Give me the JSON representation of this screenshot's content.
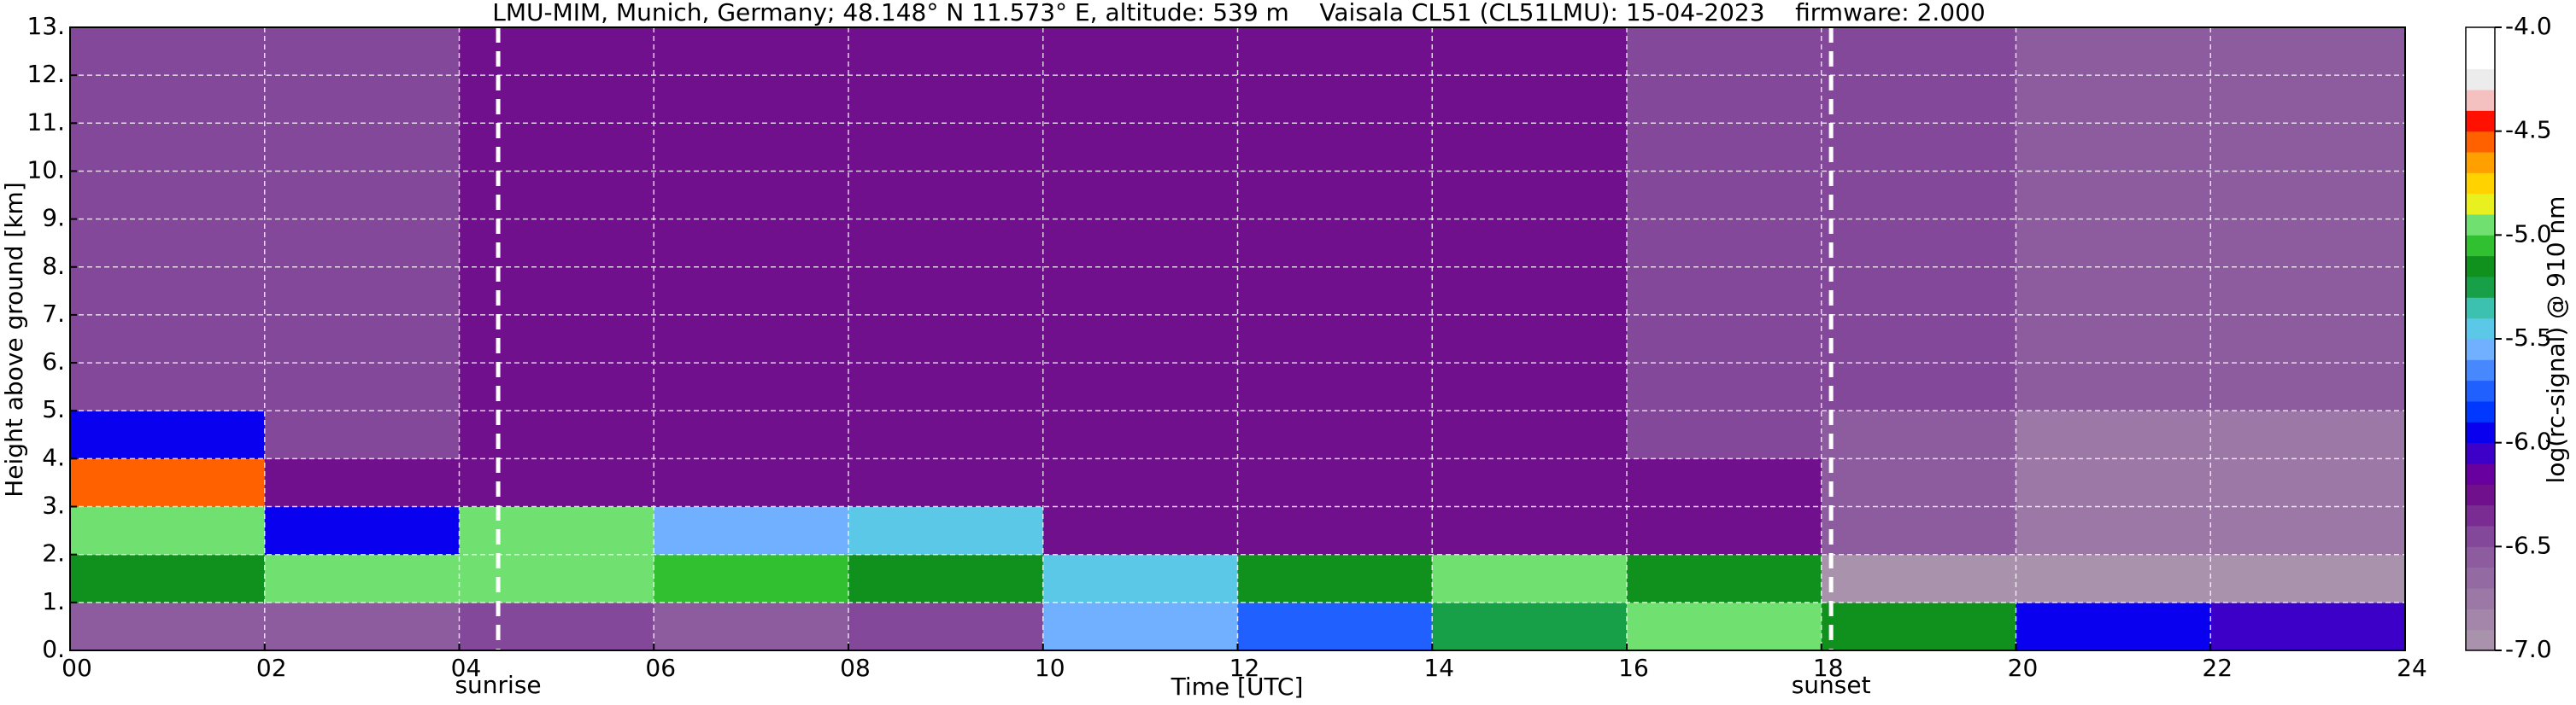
{
  "chart_data": {
    "type": "heatmap",
    "title": "LMU-MIM, Munich, Germany; 48.148° N 11.573° E, altitude: 539 m    Vaisala CL51 (CL51LMU): 15-04-2023    firmware: 2.000",
    "xlabel": "Time [UTC]",
    "ylabel": "Height above ground [km]",
    "colorbar_label": "log(rc-signal) @ 910 nm",
    "xlim": [
      0,
      24
    ],
    "ylim": [
      0,
      13
    ],
    "xticks": [
      {
        "value": 0,
        "label": "00"
      },
      {
        "value": 2,
        "label": "02"
      },
      {
        "value": 4,
        "label": "04"
      },
      {
        "value": 6,
        "label": "06"
      },
      {
        "value": 8,
        "label": "08"
      },
      10,
      12,
      14,
      16,
      18,
      20,
      22,
      24
    ],
    "yticks": [
      {
        "value": 0,
        "label": "0."
      },
      {
        "value": 1,
        "label": "1."
      },
      {
        "value": 2,
        "label": "2."
      },
      {
        "value": 3,
        "label": "3."
      },
      {
        "value": 4,
        "label": "4."
      },
      {
        "value": 5,
        "label": "5."
      },
      {
        "value": 6,
        "label": "6."
      },
      {
        "value": 7,
        "label": "7."
      },
      {
        "value": 8,
        "label": "8."
      },
      {
        "value": 9,
        "label": "9."
      },
      {
        "value": 10,
        "label": "10."
      },
      {
        "value": 11,
        "label": "11."
      },
      {
        "value": 12,
        "label": "12."
      },
      {
        "value": 13,
        "label": "13."
      }
    ],
    "grid": true,
    "x_edges": [
      0,
      2,
      4,
      6,
      8,
      10,
      12,
      14,
      16,
      18,
      20,
      22,
      24
    ],
    "y_edges": [
      0,
      1,
      2,
      3,
      4,
      5,
      6,
      7,
      8,
      9,
      10,
      11,
      12,
      13
    ],
    "values": [
      [
        -6.6,
        -6.6,
        -6.5,
        -6.6,
        -6.4,
        -5.6,
        -5.8,
        -5.3,
        -5.0,
        -5.2,
        -6.0,
        -6.1
      ],
      [
        -5.2,
        -5.0,
        -5.0,
        -5.1,
        -5.2,
        -5.5,
        -5.2,
        -5.0,
        -5.2,
        -7.0,
        -7.0,
        -7.0
      ],
      [
        -4.9,
        -6.0,
        -5.0,
        -5.6,
        -5.5,
        -6.3,
        -6.3,
        -6.3,
        -6.3,
        -6.6,
        -6.7,
        -6.7
      ],
      [
        -4.6,
        -6.3,
        -6.3,
        -6.3,
        -6.3,
        -6.3,
        -6.3,
        -6.3,
        -6.3,
        -6.6,
        -6.7,
        -6.7
      ],
      [
        -6.0,
        -6.4,
        -6.3,
        -6.3,
        -6.3,
        -6.3,
        -6.3,
        -6.3,
        -6.4,
        -6.6,
        -6.7,
        -6.7
      ],
      [
        -6.4,
        -6.4,
        -6.3,
        -6.3,
        -6.3,
        -6.3,
        -6.3,
        -6.3,
        -6.4,
        -6.5,
        -6.6,
        -6.6
      ],
      [
        -6.4,
        -6.4,
        -6.3,
        -6.3,
        -6.3,
        -6.3,
        -6.3,
        -6.3,
        -6.4,
        -6.5,
        -6.6,
        -6.6
      ],
      [
        -6.4,
        -6.4,
        -6.3,
        -6.3,
        -6.3,
        -6.3,
        -6.3,
        -6.3,
        -6.4,
        -6.5,
        -6.6,
        -6.6
      ],
      [
        -6.4,
        -6.4,
        -6.3,
        -6.3,
        -6.3,
        -6.3,
        -6.3,
        -6.3,
        -6.4,
        -6.5,
        -6.6,
        -6.6
      ],
      [
        -6.4,
        -6.4,
        -6.3,
        -6.3,
        -6.3,
        -6.3,
        -6.3,
        -6.3,
        -6.4,
        -6.5,
        -6.6,
        -6.6
      ],
      [
        -6.4,
        -6.4,
        -6.3,
        -6.3,
        -6.3,
        -6.3,
        -6.3,
        -6.3,
        -6.4,
        -6.5,
        -6.6,
        -6.6
      ],
      [
        -6.4,
        -6.4,
        -6.3,
        -6.3,
        -6.3,
        -6.3,
        -6.3,
        -6.3,
        -6.4,
        -6.5,
        -6.6,
        -6.6
      ],
      [
        -6.4,
        -6.4,
        -6.3,
        -6.3,
        -6.3,
        -6.3,
        -6.3,
        -6.3,
        -6.4,
        -6.5,
        -6.6,
        -6.6
      ]
    ],
    "clim": [
      -7,
      -4
    ],
    "cticks": [
      {
        "value": -7,
        "label": "-7.0"
      },
      -6.5,
      {
        "value": -6,
        "label": "-6.0"
      },
      -5.5,
      {
        "value": -5,
        "label": "-5.0"
      },
      -4.5,
      {
        "value": -4,
        "label": "-4.0"
      }
    ],
    "colormap": [
      "#a892ac",
      "#a486aa",
      "#9c78a6",
      "#946aa2",
      "#8c5c9e",
      "#84489a",
      "#7a2c92",
      "#70108c",
      "#6800a0",
      "#3c00c8",
      "#0a00f0",
      "#0038ff",
      "#2060ff",
      "#4888ff",
      "#70b0ff",
      "#5cc8e8",
      "#3cc0b0",
      "#18a048",
      "#10901c",
      "#30c030",
      "#70e070",
      "#e8f020",
      "#ffd200",
      "#ffa000",
      "#ff6000",
      "#ff1000",
      "#f4c0c0",
      "#ececec",
      "#ffffff",
      "#ffffff"
    ],
    "annotations": [
      {
        "text": "sunrise",
        "x": 4.4
      },
      {
        "text": "sunset",
        "x": 18.1
      }
    ]
  }
}
